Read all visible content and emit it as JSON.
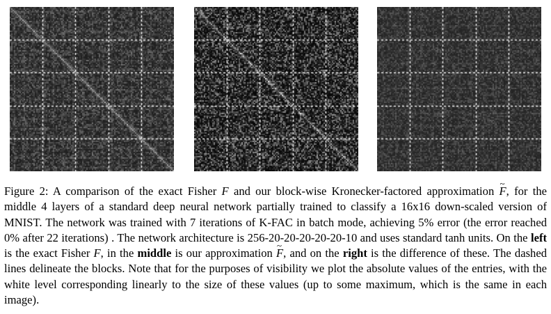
{
  "figure": {
    "panels": [
      {
        "id": "left",
        "description_key": "exact-fisher",
        "seed": 11,
        "mode": "fisher"
      },
      {
        "id": "middle",
        "description_key": "approximation",
        "seed": 23,
        "mode": "approx"
      },
      {
        "id": "right",
        "description_key": "difference",
        "seed": 37,
        "mode": "diff"
      }
    ],
    "block_count": 4
  },
  "caption": {
    "label": "Figure 2:",
    "s1": " A comparison of the exact Fisher ",
    "F1": "F",
    "s2": " and our block-wise Kronecker-factored approximation ",
    "Ft1": "F",
    "s3": ", for the middle 4 layers of a standard deep neural network partially trained to classify a 16x16 down-scaled version of MNIST. The network was trained with 7 iterations of K-FAC in batch mode, achieving 5% error (the error reached 0% after 22 iterations) . The network architecture is 256-20-20-20-20-20-10 and uses standard tanh units. On the ",
    "left": "left",
    "s4": " is the exact Fisher ",
    "F2": "F",
    "s5": ", in the ",
    "middle": "middle",
    "s6": " is our approximation ",
    "Ft2": "F",
    "s7": ", and on the ",
    "right": "right",
    "s8": " is the difference of these. The dashed lines delineate the blocks. Note that for the purposes of visibility we plot the absolute values of the entries, with the white level corresponding linearly to the size of these values (up to some maximum, which is the same in each image)."
  }
}
